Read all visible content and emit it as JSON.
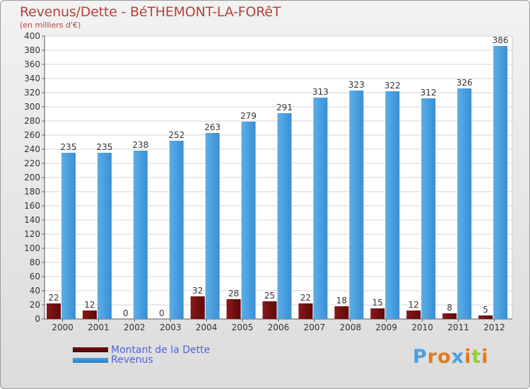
{
  "header": {
    "title": "Revenus/Dette - BéTHEMONT-LA-FORêT",
    "subtitle": "(en milliers d'€)"
  },
  "legend": [
    {
      "label": "Montant de la Dette",
      "color": "#7a0f0f"
    },
    {
      "label": "Revenus",
      "color": "#4a9fe0"
    }
  ],
  "logo": {
    "text": "Proxiti"
  },
  "chart_data": {
    "type": "bar",
    "categories": [
      "2000",
      "2001",
      "2002",
      "2003",
      "2004",
      "2005",
      "2006",
      "2007",
      "2008",
      "2009",
      "2010",
      "2011",
      "2012"
    ],
    "series": [
      {
        "name": "Montant de la Dette",
        "color": "#7a0f0f",
        "values": [
          22,
          12,
          0,
          0,
          32,
          28,
          25,
          22,
          18,
          15,
          12,
          8,
          5
        ]
      },
      {
        "name": "Revenus",
        "color": "#4a9fe0",
        "values": [
          235,
          235,
          238,
          252,
          263,
          279,
          291,
          313,
          323,
          322,
          312,
          326,
          386
        ]
      }
    ],
    "ylim": [
      0,
      400
    ],
    "ytick_step": 20,
    "grid": true,
    "legend_position": "bottom-left"
  }
}
